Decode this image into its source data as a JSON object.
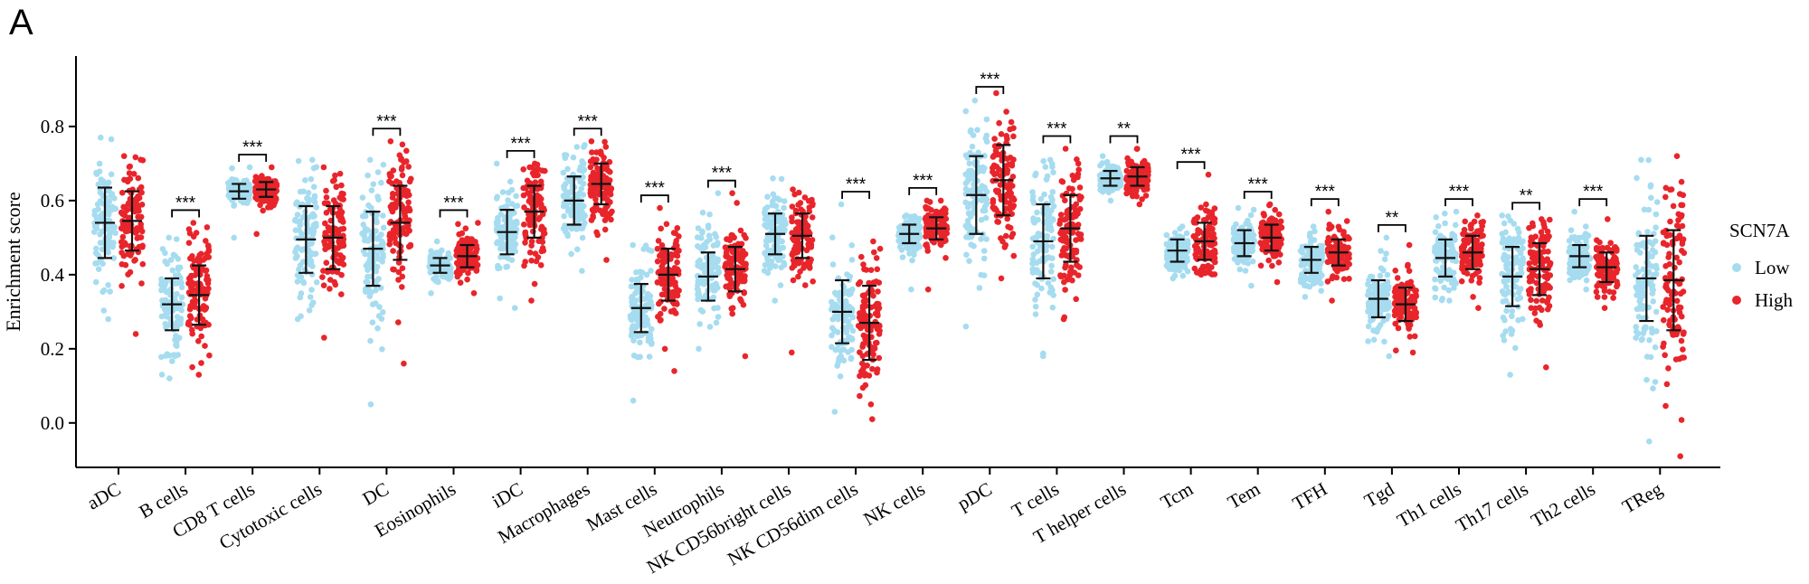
{
  "panel_label": "A",
  "colors": {
    "low": "#a6dcf0",
    "high": "#e8252b",
    "axis": "#000000"
  },
  "chart_data": {
    "type": "scatter",
    "title": "",
    "xlabel": "",
    "ylabel": "Enrichment score",
    "ylim": [
      -0.12,
      0.99
    ],
    "yticks": [
      0.0,
      0.2,
      0.4,
      0.6,
      0.8
    ],
    "ytick_labels": [
      "0.0",
      "0.2",
      "0.4",
      "0.6",
      "0.8"
    ],
    "legend": {
      "title": "SCN7A",
      "position": "right",
      "entries": [
        "Low",
        "High"
      ]
    },
    "categories": [
      "aDC",
      "B cells",
      "CD8 T cells",
      "Cytotoxic cells",
      "DC",
      "Eosinophils",
      "iDC",
      "Macrophages",
      "Mast cells",
      "Neutrophils",
      "NK CD56bright cells",
      "NK CD56dim cells",
      "NK cells",
      "pDC",
      "T cells",
      "T helper cells",
      "Tcm",
      "Tem",
      "TFH",
      "Tgd",
      "Th1 cells",
      "Th17 cells",
      "Th2 cells",
      "TReg"
    ],
    "significance": [
      "",
      "***",
      "***",
      "",
      "***",
      "***",
      "***",
      "***",
      "***",
      "***",
      "",
      "***",
      "***",
      "***",
      "***",
      "**",
      "***",
      "***",
      "***",
      "**",
      "***",
      "**",
      "***",
      ""
    ],
    "series": [
      {
        "name": "Low",
        "mean": [
          0.54,
          0.32,
          0.625,
          0.495,
          0.47,
          0.425,
          0.515,
          0.6,
          0.31,
          0.395,
          0.51,
          0.3,
          0.51,
          0.615,
          0.49,
          0.66,
          0.465,
          0.485,
          0.44,
          0.335,
          0.445,
          0.395,
          0.45,
          0.39
        ],
        "sd": [
          0.095,
          0.07,
          0.02,
          0.09,
          0.1,
          0.02,
          0.06,
          0.065,
          0.065,
          0.065,
          0.055,
          0.085,
          0.025,
          0.105,
          0.1,
          0.02,
          0.03,
          0.035,
          0.035,
          0.05,
          0.05,
          0.08,
          0.03,
          0.115
        ],
        "min": [
          0.28,
          0.12,
          0.5,
          0.28,
          0.05,
          0.35,
          0.31,
          0.41,
          0.06,
          0.2,
          0.33,
          0.03,
          0.36,
          0.26,
          0.18,
          0.6,
          0.39,
          0.37,
          0.34,
          0.18,
          0.33,
          0.13,
          0.36,
          -0.05
        ],
        "max": [
          0.77,
          0.5,
          0.69,
          0.71,
          0.71,
          0.49,
          0.7,
          0.75,
          0.48,
          0.62,
          0.66,
          0.59,
          0.56,
          0.87,
          0.71,
          0.72,
          0.53,
          0.58,
          0.53,
          0.5,
          0.57,
          0.56,
          0.57,
          0.71
        ]
      },
      {
        "name": "High",
        "mean": [
          0.545,
          0.345,
          0.63,
          0.5,
          0.54,
          0.45,
          0.57,
          0.645,
          0.4,
          0.415,
          0.505,
          0.27,
          0.525,
          0.655,
          0.525,
          0.665,
          0.49,
          0.5,
          0.46,
          0.32,
          0.46,
          0.415,
          0.42,
          0.385
        ],
        "sd": [
          0.08,
          0.08,
          0.02,
          0.085,
          0.1,
          0.03,
          0.07,
          0.055,
          0.07,
          0.06,
          0.06,
          0.1,
          0.03,
          0.095,
          0.09,
          0.025,
          0.05,
          0.035,
          0.035,
          0.045,
          0.045,
          0.07,
          0.04,
          0.135
        ],
        "min": [
          0.24,
          0.13,
          0.51,
          0.23,
          0.16,
          0.35,
          0.33,
          0.44,
          0.14,
          0.18,
          0.19,
          0.01,
          0.36,
          0.39,
          0.28,
          0.59,
          0.4,
          0.38,
          0.33,
          0.19,
          0.31,
          0.15,
          0.31,
          -0.09
        ],
        "max": [
          0.72,
          0.54,
          0.69,
          0.69,
          0.76,
          0.54,
          0.7,
          0.76,
          0.58,
          0.62,
          0.63,
          0.49,
          0.6,
          0.89,
          0.74,
          0.74,
          0.67,
          0.59,
          0.57,
          0.48,
          0.56,
          0.55,
          0.55,
          0.72
        ]
      }
    ]
  }
}
